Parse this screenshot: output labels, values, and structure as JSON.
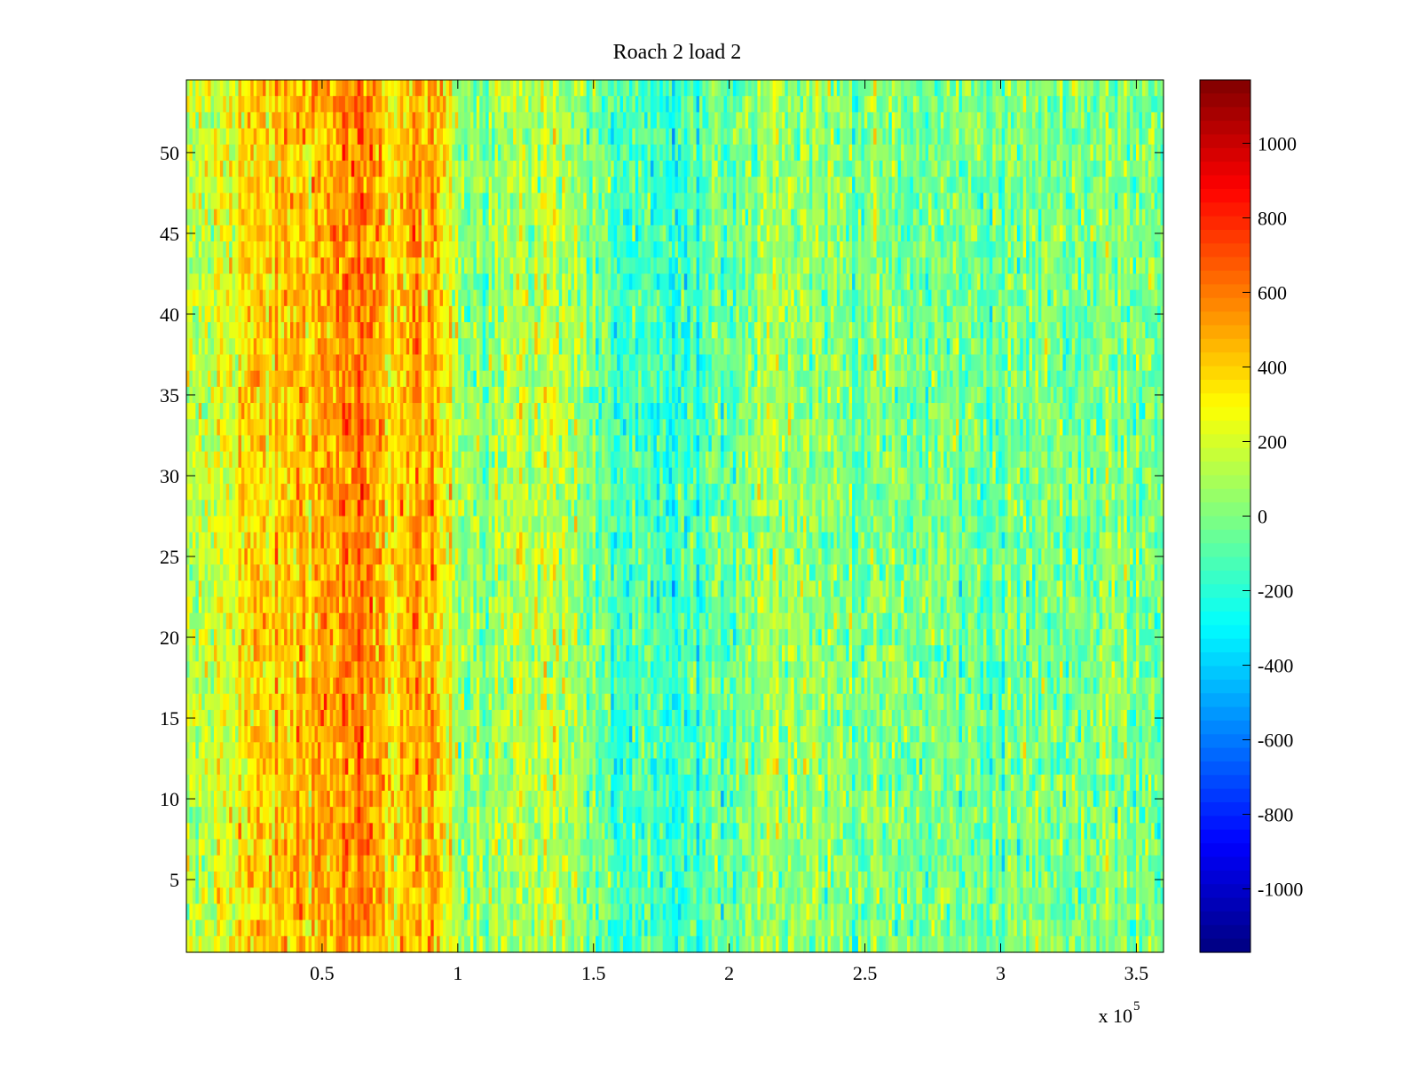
{
  "chart_data": {
    "type": "heatmap",
    "title": "Roach 2 load 2",
    "xlabel": "",
    "ylabel": "",
    "x_exponent_label": {
      "base": "x 10",
      "exponent": "5"
    },
    "xlim": [
      0.0,
      3.6
    ],
    "ylim": [
      0.5,
      54.5
    ],
    "x_ticks": [
      0.5,
      1,
      1.5,
      2,
      2.5,
      3,
      3.5
    ],
    "x_tick_labels": [
      "0.5",
      "1",
      "1.5",
      "2",
      "2.5",
      "3",
      "3.5"
    ],
    "y_ticks": [
      5,
      10,
      15,
      20,
      25,
      30,
      35,
      40,
      45,
      50
    ],
    "y_tick_labels": [
      "5",
      "10",
      "15",
      "20",
      "25",
      "30",
      "35",
      "40",
      "45",
      "50"
    ],
    "n_rows": 54,
    "colorbar": {
      "colormap": "jet",
      "clim": [
        -1170,
        1170
      ],
      "ticks": [
        1000,
        800,
        600,
        400,
        200,
        0,
        -200,
        -400,
        -600,
        -800,
        -1000
      ],
      "tick_labels": [
        "1000",
        "800",
        "600",
        "400",
        "200",
        "0",
        "-200",
        "-400",
        "-600",
        "-800",
        "-1000"
      ]
    },
    "column_mean_profile": {
      "x": [
        0.0,
        0.1,
        0.2,
        0.3,
        0.4,
        0.5,
        0.55,
        0.6,
        0.65,
        0.7,
        0.75,
        0.8,
        0.85,
        0.9,
        0.95,
        1.0,
        1.1,
        1.2,
        1.3,
        1.4,
        1.5,
        1.6,
        1.7,
        1.8,
        1.9,
        2.0,
        2.1,
        2.2,
        2.3,
        2.4,
        2.5,
        2.6,
        2.8,
        3.0,
        3.2,
        3.4,
        3.6
      ],
      "values": [
        80,
        180,
        330,
        370,
        430,
        480,
        520,
        560,
        560,
        480,
        380,
        430,
        460,
        420,
        320,
        120,
        60,
        100,
        150,
        170,
        -60,
        -140,
        -170,
        -190,
        -130,
        -30,
        60,
        130,
        60,
        20,
        0,
        -20,
        -30,
        -40,
        0,
        0,
        40
      ]
    },
    "noise_amplitude": 170
  },
  "layout_colors": {
    "axis": "#000000",
    "background": "#ffffff"
  }
}
